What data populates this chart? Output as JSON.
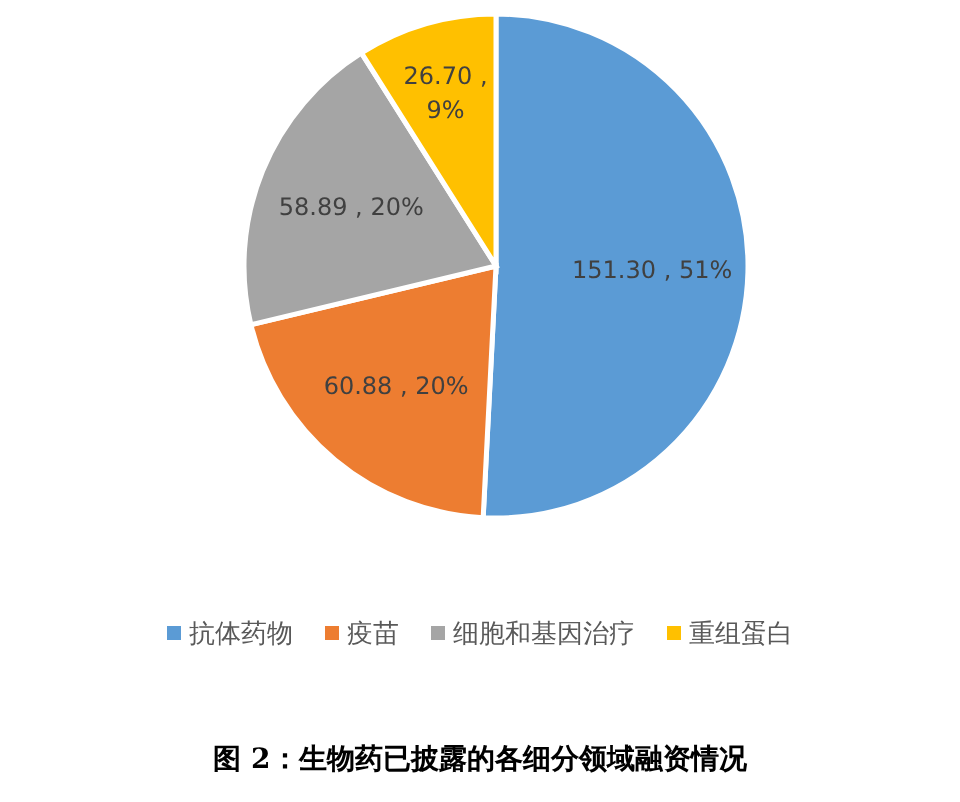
{
  "chart_data": {
    "type": "pie",
    "title": "图 2：生物药已披露的各细分领域融资情况",
    "categories": [
      "抗体药物",
      "疫苗",
      "细胞和基因治疗",
      "重组蛋白"
    ],
    "values": [
      151.3,
      60.88,
      58.89,
      26.7
    ],
    "colors": [
      "#5b9bd5",
      "#ed7d31",
      "#a5a5a5",
      "#ffc000"
    ],
    "value_labels": [
      "151.30 , 51%",
      "60.88 , 20%",
      "58.89 , 20%",
      "26.70 , 9%"
    ],
    "legend": "bottom"
  }
}
